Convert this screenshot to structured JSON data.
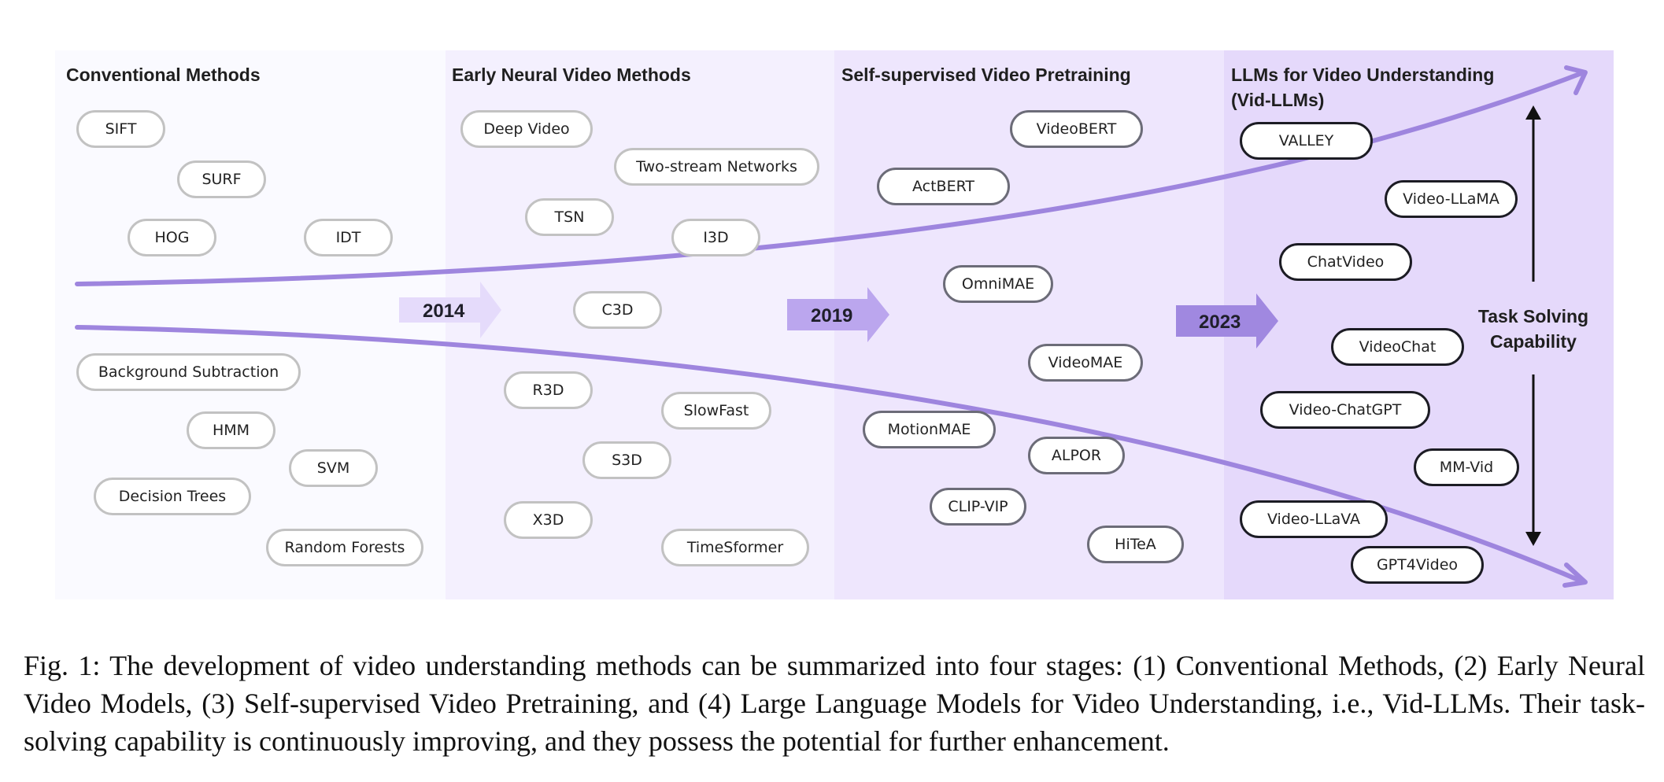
{
  "stages": [
    {
      "title": "Conventional Methods",
      "methods": [
        "SIFT",
        "SURF",
        "HOG",
        "IDT",
        "Background Subtraction",
        "HMM",
        "SVM",
        "Decision Trees",
        "Random Forests"
      ]
    },
    {
      "title": "Early Neural Video Methods",
      "methods": [
        "Deep Video",
        "Two-stream Networks",
        "TSN",
        "I3D",
        "C3D",
        "R3D",
        "SlowFast",
        "S3D",
        "X3D",
        "TimeSformer"
      ]
    },
    {
      "title": "Self-supervised Video Pretraining",
      "methods": [
        "VideoBERT",
        "ActBERT",
        "OmniMAE",
        "VideoMAE",
        "MotionMAE",
        "ALPOR",
        "CLIP-VIP",
        "HiTeA"
      ]
    },
    {
      "title_line1": "LLMs for Video Understanding",
      "title_line2": "(Vid-LLMs)",
      "methods": [
        "VALLEY",
        "Video-LLaMA",
        "ChatVideo",
        "VideoChat",
        "Video-ChatGPT",
        "MM-Vid",
        "Video-LLaVA",
        "GPT4Video"
      ]
    }
  ],
  "years": [
    "2014",
    "2019",
    "2023"
  ],
  "task_label_line1": "Task Solving",
  "task_label_line2": "Capability",
  "caption": "Fig. 1: The development of video understanding methods can be summarized into four stages: (1) Conventional Methods, (2) Early Neural Video Models, (3) Self-supervised Video Pretraining, and (4) Large Language Models for Video Understanding, i.e., Vid-LLMs. Their task-solving capability is continuously improving, and they possess the potential for further enhancement.",
  "colors": {
    "panel_1": "#fafaff",
    "panel_2": "#f4f0fe",
    "panel_3": "#eee6fd",
    "panel_4": "#e5d9fb",
    "funnel_curve": "#9e85de",
    "arrow_2014": "#e5dbfb",
    "arrow_2019": "#bba6ee",
    "arrow_2023": "#a088e0",
    "axis_arrow": "#111111"
  }
}
